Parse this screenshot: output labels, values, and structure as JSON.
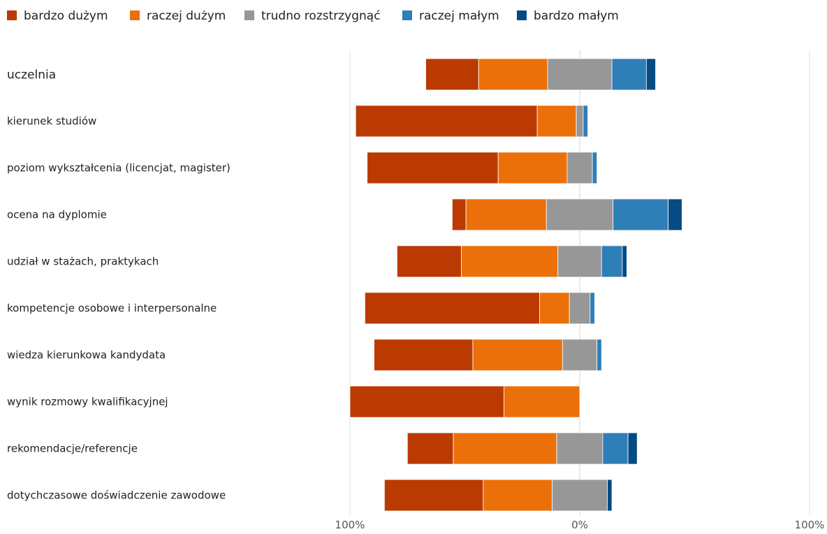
{
  "chart_data": {
    "type": "bar",
    "orientation": "horizontal",
    "stacking": "diverging",
    "title": "",
    "xlabel": "",
    "ylabel": "",
    "xlim": [
      -100,
      100
    ],
    "x_tick_labels": [
      "100%",
      "0%",
      "100%"
    ],
    "grid": true,
    "legend_position": "top-left",
    "categories": [
      "uczelnia",
      "kierunek studiów",
      "poziom wykształcenia (licencjat, magister)",
      "ocena na dyplomie",
      "udział w stażach, praktykach",
      "kompetencje osobowe i interpersonalne",
      "wiedza kierunkowa kandydata",
      "wynik rozmowy kwalifikacyjnej",
      "rekomendacje/referencje",
      "dotychczasowe doświadczenie zawodowe"
    ],
    "series": [
      {
        "name": "bardzo dużym",
        "color": "#BB3A02",
        "values": [
          23,
          79,
          57,
          6,
          28,
          76,
          43,
          67,
          20,
          43
        ]
      },
      {
        "name": "raczej dużym",
        "color": "#EC700A",
        "values": [
          30,
          17,
          30,
          35,
          42,
          13,
          39,
          33,
          45,
          30
        ]
      },
      {
        "name": "trudno rozstrzygnąć",
        "color": "#979797",
        "values": [
          28,
          3,
          11,
          29,
          19,
          9,
          15,
          0,
          20,
          24
        ]
      },
      {
        "name": "raczej małym",
        "color": "#2E7EB8",
        "values": [
          15,
          2,
          2,
          24,
          9,
          2,
          2,
          0,
          11,
          0
        ]
      },
      {
        "name": "bardzo małym",
        "color": "#054B84",
        "values": [
          4,
          0,
          0,
          6,
          2,
          0,
          0,
          0,
          4,
          2
        ]
      }
    ]
  }
}
